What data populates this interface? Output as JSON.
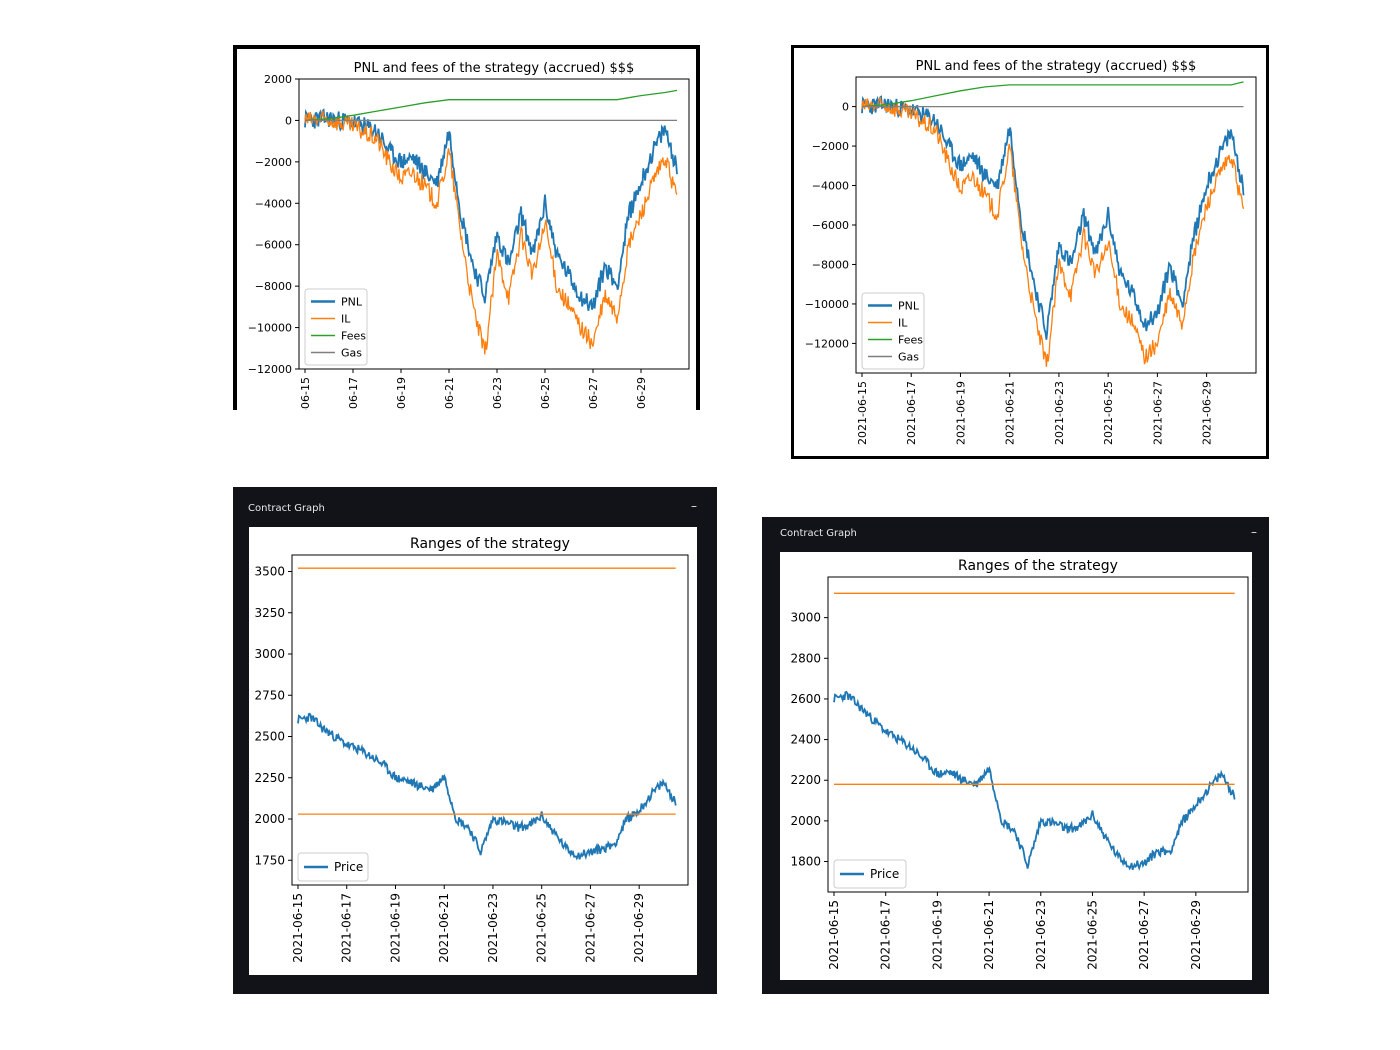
{
  "chart_data": [
    {
      "type": "line",
      "title": "PNL and fees of the strategy (accrued) $$$",
      "x_tick_labels": [
        "-06-15",
        "06-17",
        "-06-19",
        "06-21",
        "06-23",
        "06-25",
        "06-27",
        "06-29"
      ],
      "y_tick_labels": [
        "2000",
        "0",
        "−2000",
        "−4000",
        "−6000",
        "−8000",
        "−10000",
        "−12000"
      ],
      "x_range": [
        "2021-06-15",
        "2021-06-30"
      ],
      "ylim": [
        -12000,
        2000
      ],
      "grid": false,
      "legend_position": "lower-left",
      "series": [
        {
          "name": "PNL",
          "color": "#1f77b4",
          "x": [
            "06-15",
            "06-16",
            "06-17",
            "06-18",
            "06-18.5",
            "06-19",
            "06-19.5",
            "06-20",
            "06-20.5",
            "06-21",
            "06-21.5",
            "06-22",
            "06-22.5",
            "06-23",
            "06-23.5",
            "06-24",
            "06-24.5",
            "06-25",
            "06-25.5",
            "06-26",
            "06-26.5",
            "06-27",
            "06-27.5",
            "06-28",
            "06-28.5",
            "06-29",
            "06-29.5",
            "06-30",
            "06-30.5"
          ],
          "values": [
            0,
            100,
            -100,
            -500,
            -1500,
            -2000,
            -1800,
            -2500,
            -3000,
            -500,
            -4500,
            -7000,
            -8500,
            -5500,
            -7000,
            -4500,
            -6500,
            -4000,
            -6500,
            -7500,
            -8500,
            -9000,
            -7000,
            -8000,
            -4500,
            -3000,
            -1500,
            -400,
            -2300
          ]
        },
        {
          "name": "IL",
          "color": "#ff7f0e",
          "x": [
            "06-15",
            "06-16",
            "06-17",
            "06-18",
            "06-18.5",
            "06-19",
            "06-19.5",
            "06-20",
            "06-20.5",
            "06-21",
            "06-21.5",
            "06-22",
            "06-22.5",
            "06-23",
            "06-23.5",
            "06-24",
            "06-24.5",
            "06-25",
            "06-25.5",
            "06-26",
            "06-26.5",
            "06-27",
            "06-27.5",
            "06-28",
            "06-28.5",
            "06-29",
            "06-29.5",
            "06-30",
            "06-30.5"
          ],
          "values": [
            0,
            50,
            -300,
            -900,
            -2000,
            -2800,
            -2500,
            -3200,
            -4000,
            -1500,
            -5500,
            -9000,
            -11300,
            -6500,
            -8500,
            -5500,
            -7500,
            -5000,
            -8000,
            -9000,
            -10000,
            -10800,
            -8500,
            -9500,
            -6000,
            -4500,
            -3000,
            -1800,
            -3700
          ]
        },
        {
          "name": "Fees",
          "color": "#2ca02c",
          "x": [
            "06-15",
            "06-16",
            "06-17",
            "06-18",
            "06-19",
            "06-20",
            "06-21",
            "06-22",
            "06-23",
            "06-24",
            "06-25",
            "06-26",
            "06-27",
            "06-28",
            "06-29",
            "06-30",
            "06-30.5"
          ],
          "values": [
            0,
            80,
            250,
            450,
            650,
            850,
            1000,
            1000,
            1000,
            1000,
            1000,
            1000,
            1000,
            1000,
            1200,
            1350,
            1450
          ]
        },
        {
          "name": "Gas",
          "color": "#7f7f7f",
          "x": [
            "06-15",
            "06-30.5"
          ],
          "values": [
            0,
            0
          ]
        }
      ]
    },
    {
      "type": "line",
      "title": "PNL and fees of the strategy (accrued) $$$",
      "x_tick_labels": [
        "2021-06-15",
        "2021-06-17",
        "2021-06-19",
        "2021-06-21",
        "2021-06-23",
        "2021-06-25",
        "2021-06-27",
        "2021-06-29"
      ],
      "y_tick_labels": [
        "0",
        "−2000",
        "−4000",
        "−6000",
        "−8000",
        "−10000",
        "−12000"
      ],
      "x_range": [
        "2021-06-15",
        "2021-06-30"
      ],
      "ylim": [
        -13500,
        1500
      ],
      "grid": false,
      "legend_position": "lower-left",
      "series": [
        {
          "name": "PNL",
          "color": "#1f77b4",
          "x": [
            "06-15",
            "06-16",
            "06-17",
            "06-18",
            "06-18.5",
            "06-19",
            "06-19.5",
            "06-20",
            "06-20.5",
            "06-21",
            "06-21.5",
            "06-22",
            "06-22.5",
            "06-23",
            "06-23.5",
            "06-24",
            "06-24.5",
            "06-25",
            "06-25.5",
            "06-26",
            "06-26.5",
            "06-27",
            "06-27.5",
            "06-28",
            "06-28.5",
            "06-29",
            "06-29.5",
            "06-30",
            "06-30.5"
          ],
          "values": [
            0,
            100,
            -200,
            -700,
            -2000,
            -3000,
            -2500,
            -3500,
            -4000,
            -1000,
            -6000,
            -9000,
            -11500,
            -7000,
            -8000,
            -5500,
            -7500,
            -5500,
            -8500,
            -9500,
            -11000,
            -10500,
            -8000,
            -10000,
            -6500,
            -4000,
            -2500,
            -1300,
            -4200
          ]
        },
        {
          "name": "IL",
          "color": "#ff7f0e",
          "x": [
            "06-15",
            "06-16",
            "06-17",
            "06-18",
            "06-18.5",
            "06-19",
            "06-19.5",
            "06-20",
            "06-20.5",
            "06-21",
            "06-21.5",
            "06-22",
            "06-22.5",
            "06-23",
            "06-23.5",
            "06-24",
            "06-24.5",
            "06-25",
            "06-25.5",
            "06-26",
            "06-26.5",
            "06-27",
            "06-27.5",
            "06-28",
            "06-28.5",
            "06-29",
            "06-29.5",
            "06-30",
            "06-30.5"
          ],
          "values": [
            0,
            50,
            -400,
            -1200,
            -2800,
            -4200,
            -3500,
            -4500,
            -5500,
            -2000,
            -7000,
            -10500,
            -13200,
            -8000,
            -9500,
            -6500,
            -8500,
            -7000,
            -10000,
            -11000,
            -12700,
            -12000,
            -9500,
            -11000,
            -7500,
            -5000,
            -3500,
            -2500,
            -5300
          ]
        },
        {
          "name": "Fees",
          "color": "#2ca02c",
          "x": [
            "06-15",
            "06-16",
            "06-17",
            "06-18",
            "06-19",
            "06-20",
            "06-21",
            "06-22",
            "06-23",
            "06-24",
            "06-25",
            "06-26",
            "06-27",
            "06-28",
            "06-29",
            "06-30",
            "06-30.5"
          ],
          "values": [
            0,
            100,
            300,
            550,
            800,
            1000,
            1100,
            1100,
            1100,
            1100,
            1100,
            1100,
            1100,
            1100,
            1100,
            1100,
            1250
          ]
        },
        {
          "name": "Gas",
          "color": "#7f7f7f",
          "x": [
            "06-15",
            "06-30.5"
          ],
          "values": [
            0,
            0
          ]
        }
      ]
    },
    {
      "type": "line",
      "panel_title": "Contract Graph",
      "title": "Ranges of the strategy",
      "x_tick_labels": [
        "2021-06-15",
        "2021-06-17",
        "2021-06-19",
        "2021-06-21",
        "2021-06-23",
        "2021-06-25",
        "2021-06-27",
        "2021-06-29"
      ],
      "y_tick_labels": [
        "1750",
        "2000",
        "2250",
        "2500",
        "2750",
        "3000",
        "3250",
        "3500"
      ],
      "x_range": [
        "2021-06-15",
        "2021-06-30"
      ],
      "ylim": [
        1600,
        3600
      ],
      "grid": false,
      "legend_position": "lower-left",
      "series": [
        {
          "name": "Price",
          "color": "#1f77b4",
          "x": [
            "06-15",
            "06-15.5",
            "06-16",
            "06-16.5",
            "06-17",
            "06-17.5",
            "06-18",
            "06-18.5",
            "06-19",
            "06-19.5",
            "06-20",
            "06-20.5",
            "06-21",
            "06-21.5",
            "06-22",
            "06-22.5",
            "06-23",
            "06-23.5",
            "06-24",
            "06-24.5",
            "06-25",
            "06-25.5",
            "06-26",
            "06-26.5",
            "06-27",
            "06-27.5",
            "06-28",
            "06-28.5",
            "06-29",
            "06-29.5",
            "06-30",
            "06-30.5"
          ],
          "values": [
            2600,
            2620,
            2550,
            2500,
            2450,
            2420,
            2380,
            2330,
            2250,
            2230,
            2200,
            2180,
            2260,
            2000,
            1950,
            1800,
            2000,
            1980,
            1950,
            1960,
            2020,
            1920,
            1820,
            1780,
            1800,
            1820,
            1850,
            2000,
            2050,
            2150,
            2220,
            2100
          ]
        },
        {
          "name": "",
          "color": "#ff7f0e",
          "x": [
            "06-15",
            "06-30.5"
          ],
          "values": [
            3520,
            3520
          ]
        },
        {
          "name": "",
          "color": "#ff7f0e",
          "x": [
            "06-15",
            "06-30.5"
          ],
          "values": [
            2030,
            2030
          ]
        }
      ]
    },
    {
      "type": "line",
      "panel_title": "Contract Graph",
      "title": "Ranges of the strategy",
      "x_tick_labels": [
        "2021-06-15",
        "2021-06-17",
        "2021-06-19",
        "2021-06-21",
        "2021-06-23",
        "2021-06-25",
        "2021-06-27",
        "2021-06-29"
      ],
      "y_tick_labels": [
        "1800",
        "2000",
        "2200",
        "2400",
        "2600",
        "2800",
        "3000"
      ],
      "x_range": [
        "2021-06-15",
        "2021-06-30"
      ],
      "ylim": [
        1650,
        3200
      ],
      "grid": false,
      "legend_position": "lower-left",
      "series": [
        {
          "name": "Price",
          "color": "#1f77b4",
          "x": [
            "06-15",
            "06-15.5",
            "06-16",
            "06-16.5",
            "06-17",
            "06-17.5",
            "06-18",
            "06-18.5",
            "06-19",
            "06-19.5",
            "06-20",
            "06-20.5",
            "06-21",
            "06-21.5",
            "06-22",
            "06-22.5",
            "06-23",
            "06-23.5",
            "06-24",
            "06-24.5",
            "06-25",
            "06-25.5",
            "06-26",
            "06-26.5",
            "06-27",
            "06-27.5",
            "06-28",
            "06-28.5",
            "06-29",
            "06-29.5",
            "06-30",
            "06-30.5"
          ],
          "values": [
            2600,
            2620,
            2560,
            2500,
            2440,
            2400,
            2360,
            2300,
            2230,
            2240,
            2200,
            2180,
            2260,
            2000,
            1950,
            1780,
            2000,
            1990,
            1960,
            1970,
            2030,
            1920,
            1820,
            1780,
            1790,
            1850,
            1850,
            2000,
            2080,
            2160,
            2230,
            2120
          ]
        },
        {
          "name": "",
          "color": "#ff7f0e",
          "x": [
            "06-15",
            "06-30.5"
          ],
          "values": [
            3120,
            3120
          ]
        },
        {
          "name": "",
          "color": "#ff7f0e",
          "x": [
            "06-15",
            "06-30.5"
          ],
          "values": [
            2180,
            2180
          ]
        }
      ]
    }
  ]
}
